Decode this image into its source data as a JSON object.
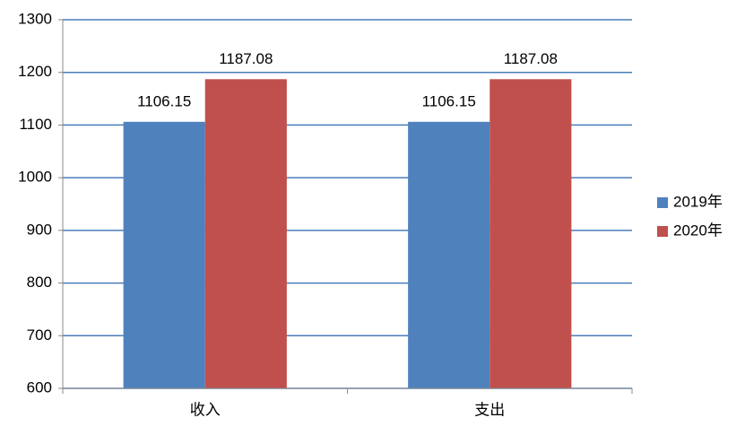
{
  "chart_data": {
    "type": "bar",
    "categories": [
      "收入",
      "支出"
    ],
    "series": [
      {
        "name": "2019年",
        "color": "#4f81bd",
        "values": [
          1106.15,
          1106.15
        ]
      },
      {
        "name": "2020年",
        "color": "#c0504d",
        "values": [
          1187.08,
          1187.08
        ]
      }
    ],
    "ylim": [
      600,
      1300
    ],
    "yticks": [
      600,
      700,
      800,
      900,
      1000,
      1100,
      1200,
      1300
    ],
    "grid": true,
    "legend": "right"
  }
}
